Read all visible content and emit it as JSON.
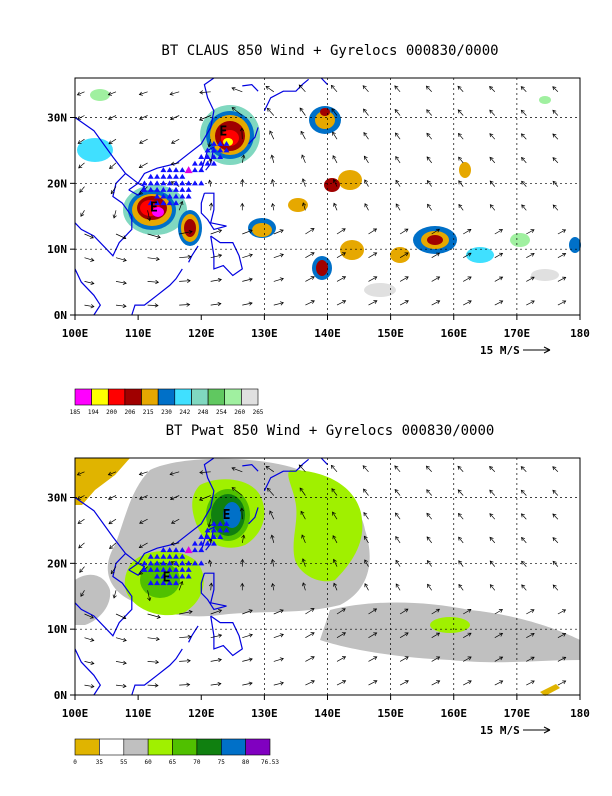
{
  "chart_data": [
    {
      "type": "heatmap",
      "title": "BT CLAUS 850 Wind + Gyrelocs 000830/0000",
      "x_ticks": [
        "100E",
        "110E",
        "120E",
        "130E",
        "140E",
        "150E",
        "160E",
        "170E",
        "180"
      ],
      "y_ticks": [
        "0N",
        "10N",
        "20N",
        "30N"
      ],
      "xlim": [
        100,
        180
      ],
      "ylim": [
        0,
        36
      ],
      "grid": true,
      "vector_scale_label": "15 M/S",
      "colorbar_labels": [
        "185",
        "194",
        "200",
        "206",
        "215",
        "230",
        "242",
        "248",
        "254",
        "260",
        "265"
      ],
      "colorbar_colors": [
        "#ff00ff",
        "#ffff00",
        "#ff0000",
        "#a00000",
        "#e6a800",
        "#0070c8",
        "#40e0ff",
        "#80d8c0",
        "#60c860",
        "#a0f0a0",
        "#e0e0e0"
      ],
      "centers": [
        {
          "label": "E",
          "lon": 123.5,
          "lat": 28
        },
        {
          "label": "E",
          "lon": 112.5,
          "lat": 16.5
        }
      ]
    },
    {
      "type": "heatmap",
      "title": "BT Pwat 850 Wind + Gyrelocs 000830/0000",
      "x_ticks": [
        "100E",
        "110E",
        "120E",
        "130E",
        "140E",
        "150E",
        "160E",
        "170E",
        "180"
      ],
      "y_ticks": [
        "0N",
        "10N",
        "20N",
        "30N"
      ],
      "xlim": [
        100,
        180
      ],
      "ylim": [
        0,
        36
      ],
      "grid": true,
      "vector_scale_label": "15 M/S",
      "colorbar_labels": [
        "0",
        "35",
        "55",
        "60",
        "65",
        "70",
        "75",
        "80",
        "76.53"
      ],
      "colorbar_colors": [
        "#e0b400",
        "#ffffff",
        "#c0c0c0",
        "#a0f000",
        "#50c000",
        "#108010",
        "#0070c8",
        "#8000c0"
      ],
      "centers": [
        {
          "label": "E",
          "lon": 124,
          "lat": 27.5
        },
        {
          "label": "E",
          "lon": 114.5,
          "lat": 18
        }
      ]
    }
  ]
}
